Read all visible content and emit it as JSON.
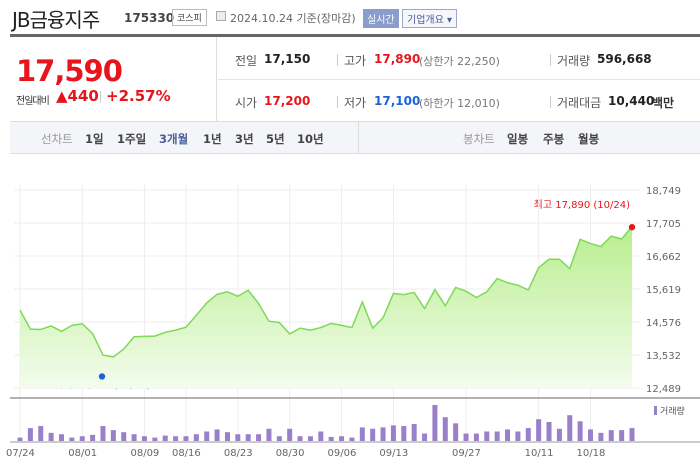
{
  "header": {
    "title": "JB금융지주",
    "code": "175330",
    "market": "코스피",
    "date": "2024.10.24 기준(장마감)",
    "realtime": "실시간",
    "company_info": "기업개요 ▾"
  },
  "quote": {
    "price": "17,590",
    "change_label": "전일대비",
    "change": "▲440",
    "change_pct": "+2.57%",
    "prev_label": "전일",
    "prev": "17,150",
    "high_label": "고가",
    "high": "17,890",
    "upper_limit": "(상한가 22,250)",
    "volume_label": "거래량",
    "volume": "596,668",
    "open_label": "시가",
    "open": "17,200",
    "low_label": "저가",
    "low": "17,100",
    "lower_limit": "(하한가 12,010)",
    "amount_label": "거래대금",
    "amount": "10,440",
    "amount_unit": "백만"
  },
  "line_tabs": {
    "label": "선차트",
    "items": [
      "1일",
      "1주일",
      "3개월",
      "1년",
      "3년",
      "5년",
      "10년"
    ],
    "active": "3개월"
  },
  "candle_tabs": {
    "label": "봉차트",
    "items": [
      "일봉",
      "주봉",
      "월봉"
    ]
  },
  "colors": {
    "up": "#e8141c",
    "down": "#1a63d8",
    "line": "#7ed957",
    "volume": "#9a7fc9"
  },
  "chart_data": {
    "type": "area",
    "yticks": [
      18749,
      17705,
      16662,
      15619,
      14576,
      13532,
      12489
    ],
    "ylim": [
      12489,
      18749
    ],
    "xtick_labels": [
      {
        "i": 0,
        "label": "07/24"
      },
      {
        "i": 6,
        "label": "08/01"
      },
      {
        "i": 12,
        "label": "08/09"
      },
      {
        "i": 16,
        "label": "08/16"
      },
      {
        "i": 21,
        "label": "08/23"
      },
      {
        "i": 26,
        "label": "08/30"
      },
      {
        "i": 31,
        "label": "09/06"
      },
      {
        "i": 36,
        "label": "09/13"
      },
      {
        "i": 43,
        "label": "09/27"
      },
      {
        "i": 50,
        "label": "10/11"
      },
      {
        "i": 55,
        "label": "10/18"
      }
    ],
    "prices": [
      14950,
      14350,
      14340,
      14450,
      14280,
      14470,
      14520,
      14210,
      13530,
      13470,
      13720,
      14110,
      14120,
      14130,
      14250,
      14320,
      14410,
      14790,
      15180,
      15450,
      15530,
      15390,
      15580,
      15160,
      14600,
      14560,
      14200,
      14380,
      14320,
      14400,
      14530,
      14470,
      14400,
      15210,
      14380,
      14710,
      15480,
      15440,
      15510,
      15000,
      15600,
      15090,
      15670,
      15550,
      15350,
      15530,
      15950,
      15820,
      15740,
      15590,
      16290,
      16560,
      16560,
      16260,
      17190,
      17060,
      16960,
      17290,
      17200,
      17590
    ],
    "volumes": [
      157000,
      597000,
      691000,
      377000,
      314000,
      157000,
      220000,
      283000,
      691000,
      502000,
      408000,
      314000,
      220000,
      157000,
      251000,
      220000,
      220000,
      314000,
      440000,
      534000,
      408000,
      314000,
      314000,
      314000,
      565000,
      220000,
      565000,
      220000,
      220000,
      440000,
      188000,
      220000,
      157000,
      628000,
      565000,
      628000,
      722000,
      691000,
      785000,
      345000,
      1664000,
      1099000,
      816000,
      345000,
      345000,
      440000,
      440000,
      534000,
      440000,
      597000,
      1005000,
      879000,
      565000,
      1193000,
      911000,
      534000,
      377000,
      502000,
      502000,
      596668
    ],
    "max_label": "최고 17,890 (10/24)",
    "max_value": 17890,
    "max_index": 59,
    "min_label": "최저 12,980 (08/05)",
    "min_value": 12980,
    "min_index": 9,
    "volume_legend": "거래량"
  }
}
